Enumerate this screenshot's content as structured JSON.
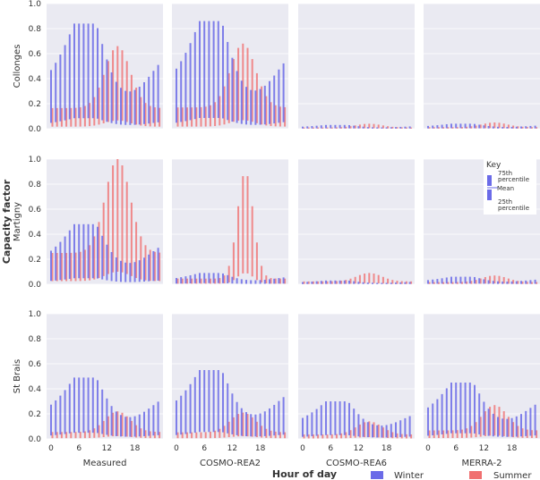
{
  "chart_data": {
    "type": "range-bar",
    "ylabel": "Capacity factor",
    "xlabel": "Hour of day",
    "ylim": [
      0,
      1.0
    ],
    "yticks": [
      "0.0",
      "0.2",
      "0.4",
      "0.6",
      "0.8",
      "1.0"
    ],
    "xticks": [
      "0",
      "6",
      "12",
      "18"
    ],
    "columns": [
      "Measured",
      "COSMO-REA2",
      "COSMO-REA6",
      "MERRA-2"
    ],
    "rows": [
      "Collonges",
      "Martigny",
      "St Brais"
    ],
    "legend": {
      "winter_label": "Winter",
      "summer_label": "Summer"
    },
    "key": {
      "title": "Key",
      "upper_label": "75th",
      "upper_label2": "percentile",
      "mean_label": "Mean",
      "lower_label": "25th",
      "lower_label2": "percentile"
    },
    "colors": {
      "winter": "#6b6be8",
      "summer": "#f07070",
      "panel_bg": "#eaeaf2"
    },
    "series_summary": {
      "Collonges|Measured": {
        "winter_peak": 0.84,
        "summer_peak": 0.66
      },
      "Collonges|COSMO-REA2": {
        "winter_peak": 0.86,
        "summer_peak": 0.68
      },
      "Collonges|COSMO-REA6": {
        "winter_peak": 0.03,
        "summer_peak": 0.04
      },
      "Collonges|MERRA-2": {
        "winter_peak": 0.04,
        "summer_peak": 0.05
      },
      "Martigny|Measured": {
        "winter_peak": 0.48,
        "summer_peak": 1.0
      },
      "Martigny|COSMO-REA2": {
        "winter_peak": 0.09,
        "summer_peak": 0.9
      },
      "Martigny|COSMO-REA6": {
        "winter_peak": 0.03,
        "summer_peak": 0.09
      },
      "Martigny|MERRA-2": {
        "winter_peak": 0.06,
        "summer_peak": 0.07
      },
      "St Brais|Measured": {
        "winter_peak": 0.49,
        "summer_peak": 0.22
      },
      "St Brais|COSMO-REA2": {
        "winter_peak": 0.55,
        "summer_peak": 0.21
      },
      "St Brais|COSMO-REA6": {
        "winter_peak": 0.3,
        "summer_peak": 0.14
      },
      "St Brais|MERRA-2": {
        "winter_peak": 0.45,
        "summer_peak": 0.27
      }
    }
  }
}
